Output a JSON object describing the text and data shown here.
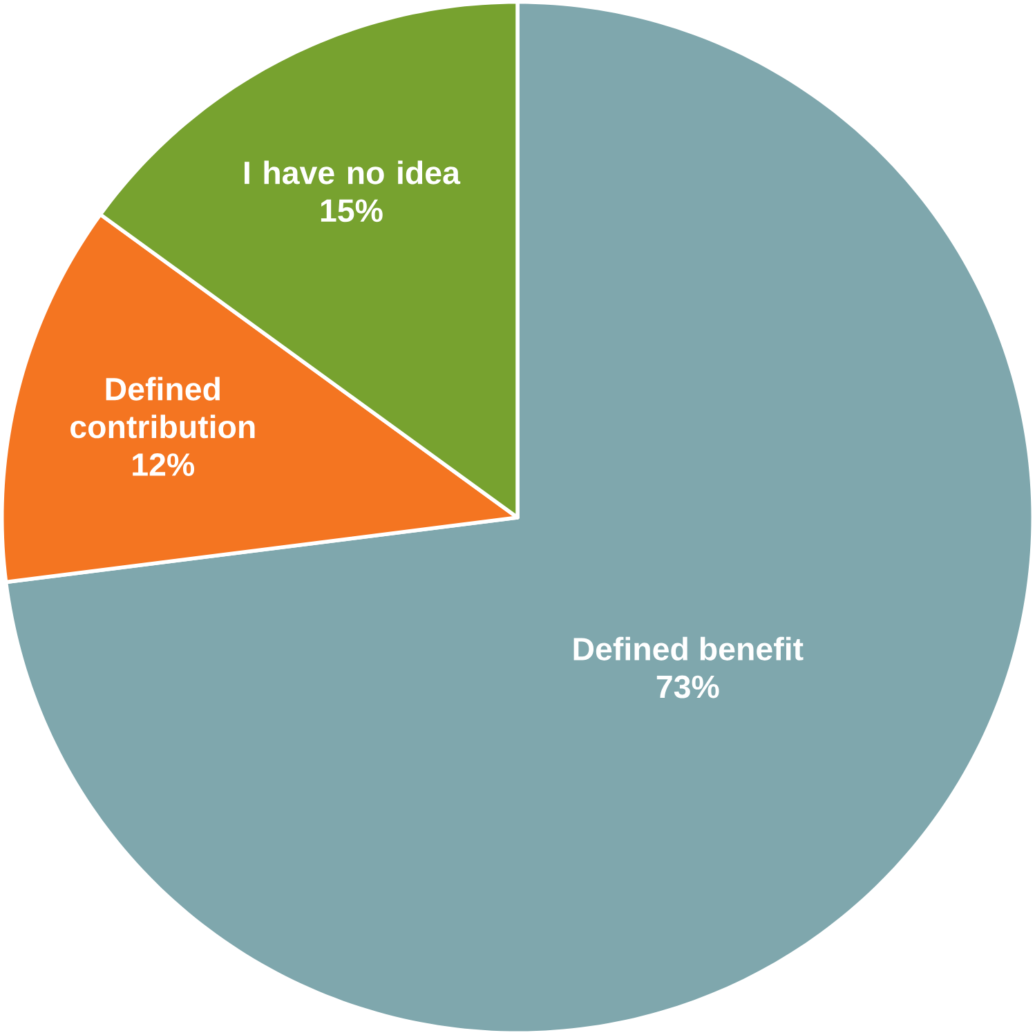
{
  "chart_data": {
    "type": "pie",
    "categories": [
      "Defined benefit",
      "Defined contribution",
      "I have no idea"
    ],
    "values": [
      73,
      12,
      15
    ],
    "colors": [
      "#7fa7ad",
      "#f47521",
      "#77a22f"
    ],
    "value_labels": [
      "73%",
      "12%",
      "15%"
    ]
  }
}
